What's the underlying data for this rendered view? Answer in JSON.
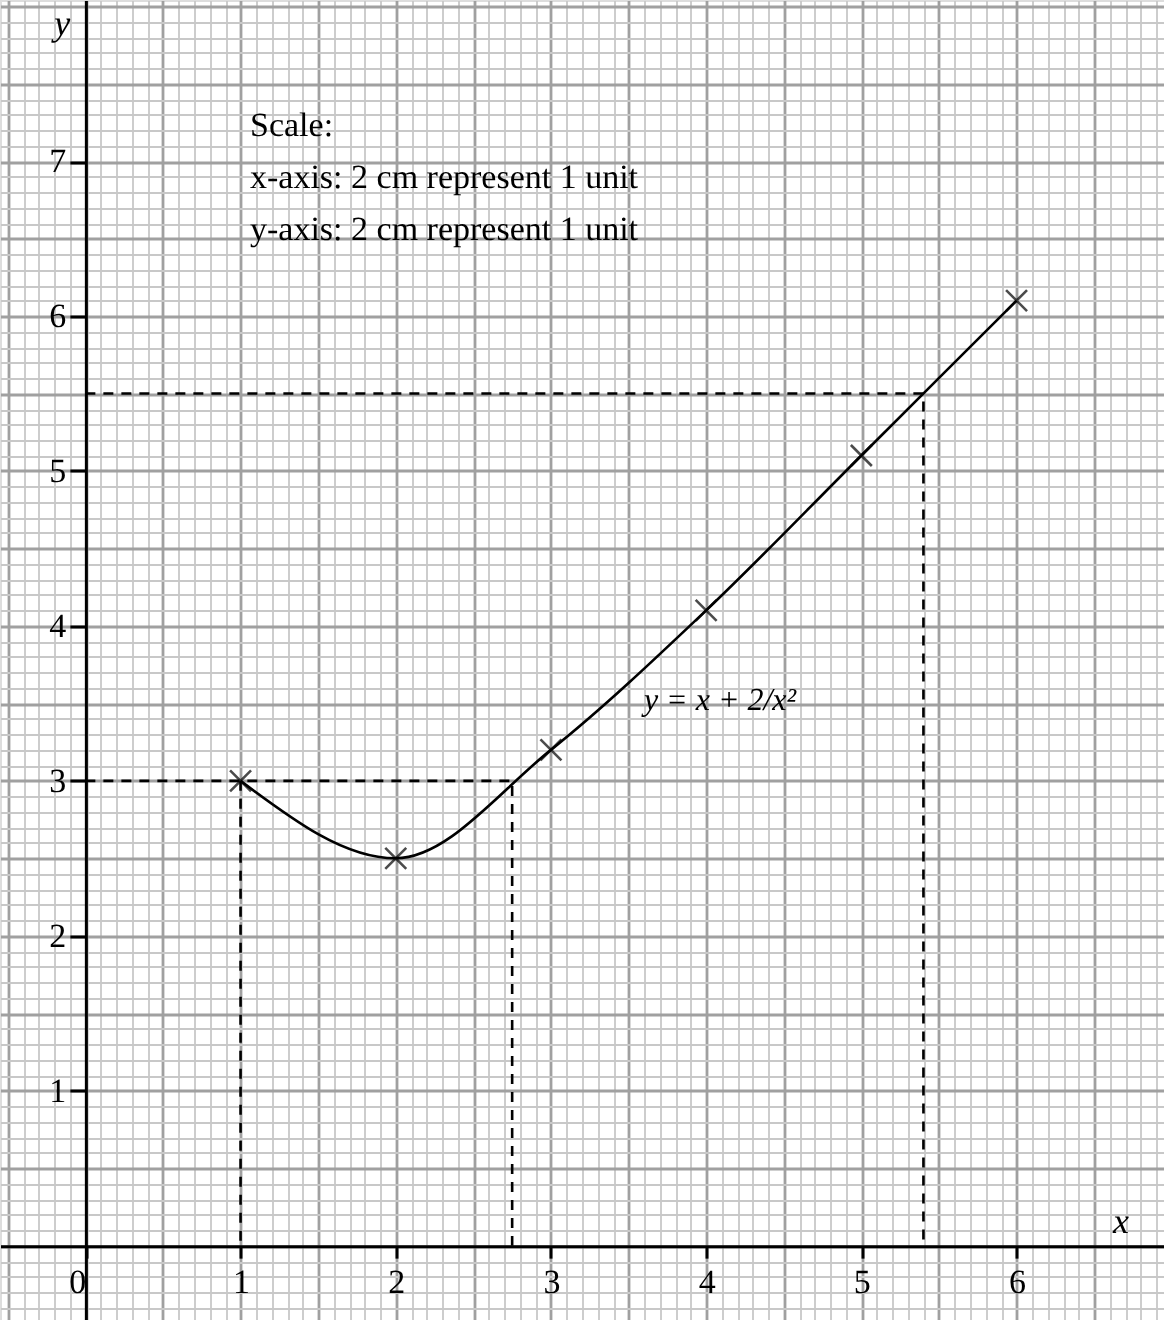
{
  "chart_data": {
    "type": "line",
    "xlabel": "x",
    "ylabel": "y",
    "xlim": [
      -0.55,
      6.95
    ],
    "ylim": [
      -0.48,
      8.04
    ],
    "xticks": [
      0,
      1,
      2,
      3,
      4,
      5,
      6
    ],
    "yticks": [
      1,
      2,
      3,
      4,
      5,
      6,
      7
    ],
    "grid": true,
    "series": [
      {
        "color": "#000000",
        "x": [
          1,
          2,
          3,
          4,
          5,
          6
        ],
        "values": [
          3,
          2.5,
          3.2,
          4.1,
          5.1,
          6.1
        ],
        "marker": "cross",
        "line_style": "solid"
      },
      {
        "color": "#000000",
        "x": [
          0,
          2.75,
          2.75
        ],
        "values": [
          3,
          3,
          0
        ],
        "marker": "none",
        "line_style": "dashed"
      },
      {
        "color": "#000000",
        "x": [
          1,
          1
        ],
        "values": [
          3,
          0
        ],
        "marker": "none",
        "line_style": "dashed"
      },
      {
        "color": "#000000",
        "x": [
          0,
          5.4,
          5.4
        ],
        "values": [
          5.5,
          5.5,
          0
        ],
        "marker": "none",
        "line_style": "dashed"
      }
    ],
    "annotations": [
      "Scale:",
      "x-axis: 2 cm represent 1 unit",
      "y-axis: 2 cm represent 1 unit",
      "y = x + 2/x²"
    ]
  }
}
